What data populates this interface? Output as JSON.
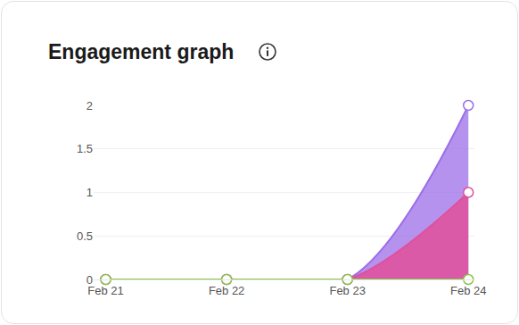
{
  "chart_data": {
    "type": "area",
    "title": "Engagement graph",
    "categories": [
      "Feb 21",
      "Feb 22",
      "Feb 23",
      "Feb 24"
    ],
    "series": [
      {
        "color": "#9b6ee8",
        "values": [
          0,
          0,
          0,
          2
        ]
      },
      {
        "color": "#e0509a",
        "values": [
          0,
          0,
          0,
          1
        ]
      },
      {
        "color": "#8bc34a",
        "values": [
          0,
          0,
          0,
          0
        ]
      }
    ],
    "ylim": [
      0,
      2
    ],
    "yticks": [
      0,
      0.5,
      1,
      1.5,
      2
    ],
    "grid": true,
    "line_style": "smooth",
    "marker": "circle",
    "stacked": false
  }
}
